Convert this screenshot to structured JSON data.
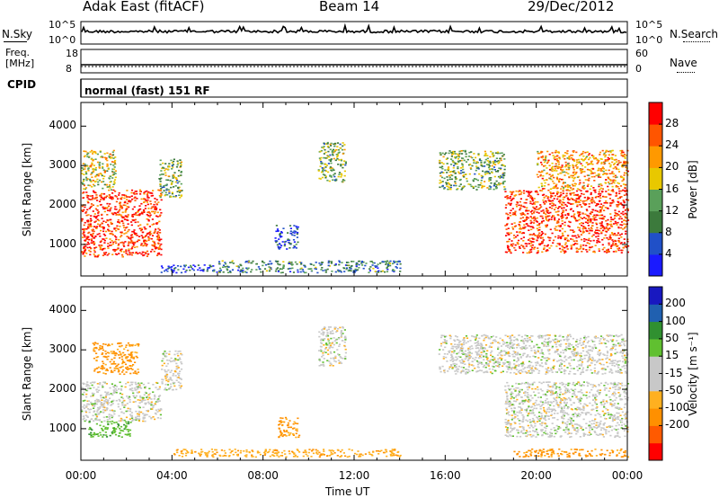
{
  "header": {
    "station": "Adak East (fitACF)",
    "beam": "Beam 14",
    "date": "29/Dec/2012"
  },
  "noise_panel": {
    "left_label": "N.Sky",
    "right_label": "N.Search",
    "left_ticks": [
      "10^5",
      "10^0"
    ],
    "right_ticks": [
      "10^5",
      "10^0"
    ]
  },
  "freq_panel": {
    "left_label_1": "Freq.",
    "left_label_2": "[MHz]",
    "right_label": "Nave",
    "left_ticks": [
      "18",
      "8"
    ],
    "right_ticks": [
      "60",
      "0"
    ]
  },
  "cpid": {
    "label": "CPID",
    "text": "normal (fast) 151 RF"
  },
  "colors": {
    "power_scale": [
      "#1a1aff",
      "#2050c8",
      "#3c7a3c",
      "#5aa05a",
      "#e8c800",
      "#ff9900",
      "#ff5500",
      "#ff0000"
    ],
    "velocity_scale": [
      "#ff0000",
      "#ff5a00",
      "#ff9000",
      "#ffb020",
      "#c8c8c8",
      "#c8c8c8",
      "#60c030",
      "#309030",
      "#2060b0",
      "#1818c0"
    ]
  },
  "chart_data": [
    {
      "type": "heatmap",
      "quantity": "power",
      "ylabel": "Slant Range [km]",
      "y_ticks": [
        "1000",
        "2000",
        "3000",
        "4000"
      ],
      "ylim": [
        200,
        4600
      ],
      "xlim": [
        0,
        24
      ],
      "colorbar_label": "Power [dB]",
      "colorbar_ticks": [
        "4",
        "8",
        "12",
        "16",
        "20",
        "24",
        "28"
      ],
      "colorbar_range": [
        0,
        32
      ],
      "regions": [
        {
          "t0": 0.0,
          "t1": 3.5,
          "r0": 700,
          "r1": 2400,
          "value": 28
        },
        {
          "t0": 0.0,
          "t1": 1.5,
          "r0": 2400,
          "r1": 3400,
          "value": 18
        },
        {
          "t0": 3.4,
          "t1": 4.4,
          "r0": 2200,
          "r1": 3200,
          "value": 14
        },
        {
          "t0": 3.5,
          "t1": 6.0,
          "r0": 300,
          "r1": 500,
          "value": 6
        },
        {
          "t0": 8.5,
          "t1": 9.5,
          "r0": 900,
          "r1": 1500,
          "value": 6
        },
        {
          "t0": 10.4,
          "t1": 11.6,
          "r0": 2600,
          "r1": 3600,
          "value": 14
        },
        {
          "t0": 6.0,
          "t1": 14.0,
          "r0": 300,
          "r1": 600,
          "value": 10
        },
        {
          "t0": 15.7,
          "t1": 18.6,
          "r0": 2400,
          "r1": 3400,
          "value": 14
        },
        {
          "t0": 18.6,
          "t1": 24.0,
          "r0": 800,
          "r1": 2400,
          "value": 28
        },
        {
          "t0": 20.0,
          "t1": 24.0,
          "r0": 2400,
          "r1": 3400,
          "value": 22
        }
      ]
    },
    {
      "type": "heatmap",
      "quantity": "velocity",
      "xlabel": "Time UT",
      "ylabel": "Slant Range [km]",
      "x_ticks": [
        "00:00",
        "04:00",
        "08:00",
        "12:00",
        "16:00",
        "20:00",
        "00:00"
      ],
      "y_ticks": [
        "1000",
        "2000",
        "3000",
        "4000"
      ],
      "ylim": [
        200,
        4600
      ],
      "xlim": [
        0,
        24
      ],
      "colorbar_label": "Velocity [m s⁻¹]",
      "colorbar_ticks": [
        "200",
        "100",
        "50",
        "15",
        "-15",
        "-50",
        "-100",
        "-200"
      ],
      "regions": [
        {
          "t0": 0.0,
          "t1": 3.5,
          "r0": 1200,
          "r1": 2200,
          "value": 0
        },
        {
          "t0": 0.3,
          "t1": 2.2,
          "r0": 800,
          "r1": 1200,
          "value": 40
        },
        {
          "t0": 0.5,
          "t1": 2.5,
          "r0": 2400,
          "r1": 3200,
          "value": -60
        },
        {
          "t0": 3.5,
          "t1": 4.4,
          "r0": 2000,
          "r1": 3000,
          "value": 0
        },
        {
          "t0": 8.6,
          "t1": 9.6,
          "r0": 800,
          "r1": 1300,
          "value": -60
        },
        {
          "t0": 10.4,
          "t1": 11.6,
          "r0": 2600,
          "r1": 3600,
          "value": 0
        },
        {
          "t0": 4.0,
          "t1": 14.0,
          "r0": 300,
          "r1": 500,
          "value": -40
        },
        {
          "t0": 15.7,
          "t1": 24.0,
          "r0": 2400,
          "r1": 3400,
          "value": 0
        },
        {
          "t0": 18.6,
          "t1": 24.0,
          "r0": 800,
          "r1": 2200,
          "value": 0
        },
        {
          "t0": 19.0,
          "t1": 24.0,
          "r0": 300,
          "r1": 500,
          "value": -60
        }
      ]
    }
  ]
}
